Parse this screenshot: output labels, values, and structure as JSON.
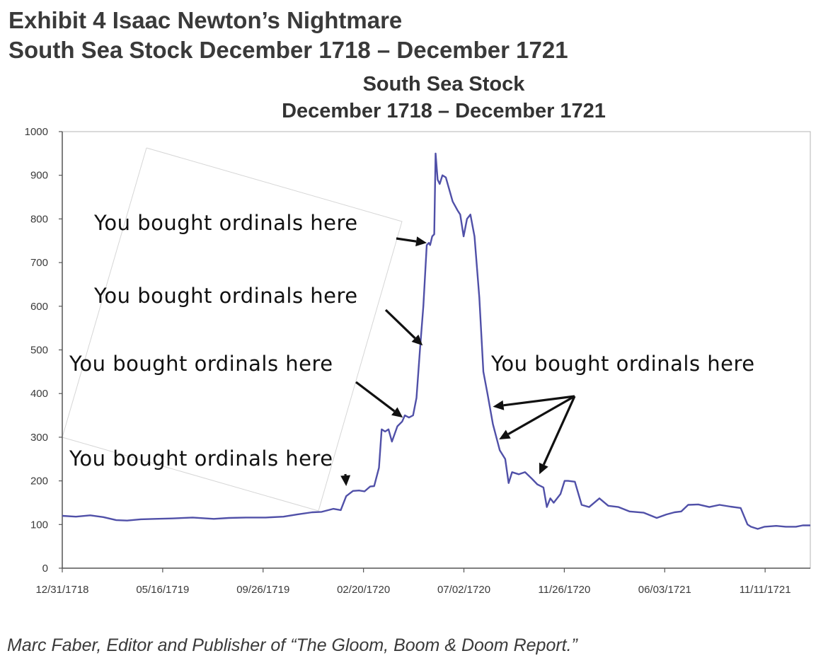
{
  "header": {
    "line1": "Exhibit 4  Isaac Newton’s Nightmare",
    "line2": "South Sea Stock December 1718 – December 1721"
  },
  "source_note": "Marc Faber, Editor and Publisher of “The Gloom, Boom & Doom Report.”",
  "annotation_text": "You bought ordinals here",
  "colors": {
    "line": "#5050a8",
    "arrow": "#111111",
    "axis": "#555555"
  },
  "chart_data": {
    "type": "line",
    "title": "South Sea Stock",
    "subtitle": "December 1718 – December 1721",
    "xlabel": "",
    "ylabel": "",
    "ylim": [
      0,
      1000
    ],
    "xlim": [
      "1718-12-31",
      "1721-12-31"
    ],
    "yticks": [
      0,
      100,
      200,
      300,
      400,
      500,
      600,
      700,
      800,
      900,
      1000
    ],
    "xticks": [
      "12/31/1718",
      "05/16/1719",
      "09/26/1719",
      "02/20/1720",
      "07/02/1720",
      "11/26/1720",
      "06/03/1721",
      "11/11/1721"
    ],
    "grid": false,
    "series": [
      {
        "values": [
          [
            "1718-12-31",
            120
          ],
          [
            "1719-01-20",
            118
          ],
          [
            "1719-02-10",
            121
          ],
          [
            "1719-03-01",
            117
          ],
          [
            "1719-03-20",
            110
          ],
          [
            "1719-04-05",
            109
          ],
          [
            "1719-04-25",
            112
          ],
          [
            "1719-05-16",
            113
          ],
          [
            "1719-06-10",
            114
          ],
          [
            "1719-07-10",
            116
          ],
          [
            "1719-08-10",
            113
          ],
          [
            "1719-09-01",
            115
          ],
          [
            "1719-09-26",
            116
          ],
          [
            "1719-10-25",
            116
          ],
          [
            "1719-11-20",
            118
          ],
          [
            "1719-12-10",
            123
          ],
          [
            "1720-01-01",
            128
          ],
          [
            "1720-01-15",
            129
          ],
          [
            "1720-02-01",
            136
          ],
          [
            "1720-02-12",
            133
          ],
          [
            "1720-02-20",
            165
          ],
          [
            "1720-03-01",
            177
          ],
          [
            "1720-03-10",
            178
          ],
          [
            "1720-03-18",
            176
          ],
          [
            "1720-03-26",
            187
          ],
          [
            "1720-04-01",
            188
          ],
          [
            "1720-04-08",
            230
          ],
          [
            "1720-04-12",
            318
          ],
          [
            "1720-04-17",
            313
          ],
          [
            "1720-04-22",
            318
          ],
          [
            "1720-04-27",
            290
          ],
          [
            "1720-05-05",
            325
          ],
          [
            "1720-05-12",
            336
          ],
          [
            "1720-05-16",
            350
          ],
          [
            "1720-05-22",
            345
          ],
          [
            "1720-05-28",
            350
          ],
          [
            "1720-06-02",
            390
          ],
          [
            "1720-06-07",
            500
          ],
          [
            "1720-06-12",
            600
          ],
          [
            "1720-06-17",
            740
          ],
          [
            "1720-06-20",
            745
          ],
          [
            "1720-06-22",
            740
          ],
          [
            "1720-06-25",
            760
          ],
          [
            "1720-06-28",
            765
          ],
          [
            "1720-06-30",
            950
          ],
          [
            "1720-07-03",
            890
          ],
          [
            "1720-07-06",
            880
          ],
          [
            "1720-07-10",
            900
          ],
          [
            "1720-07-15",
            895
          ],
          [
            "1720-07-25",
            840
          ],
          [
            "1720-08-01",
            820
          ],
          [
            "1720-08-05",
            810
          ],
          [
            "1720-08-10",
            760
          ],
          [
            "1720-08-15",
            800
          ],
          [
            "1720-08-20",
            810
          ],
          [
            "1720-08-26",
            760
          ],
          [
            "1720-09-02",
            620
          ],
          [
            "1720-09-08",
            450
          ],
          [
            "1720-09-14",
            400
          ],
          [
            "1720-09-22",
            330
          ],
          [
            "1720-10-02",
            270
          ],
          [
            "1720-10-10",
            250
          ],
          [
            "1720-10-15",
            195
          ],
          [
            "1720-10-20",
            220
          ],
          [
            "1720-10-30",
            215
          ],
          [
            "1720-11-08",
            220
          ],
          [
            "1720-11-18",
            205
          ],
          [
            "1720-11-26",
            192
          ],
          [
            "1720-12-05",
            185
          ],
          [
            "1720-12-10",
            140
          ],
          [
            "1720-12-15",
            160
          ],
          [
            "1720-12-20",
            150
          ],
          [
            "1720-12-30",
            170
          ],
          [
            "1721-01-05",
            200
          ],
          [
            "1721-01-10",
            200
          ],
          [
            "1721-01-20",
            198
          ],
          [
            "1721-01-30",
            145
          ],
          [
            "1721-02-10",
            140
          ],
          [
            "1721-02-25",
            160
          ],
          [
            "1721-03-10",
            143
          ],
          [
            "1721-03-25",
            140
          ],
          [
            "1721-04-10",
            130
          ],
          [
            "1721-05-01",
            127
          ],
          [
            "1721-05-20",
            115
          ],
          [
            "1721-06-03",
            123
          ],
          [
            "1721-06-15",
            128
          ],
          [
            "1721-06-25",
            130
          ],
          [
            "1721-07-05",
            145
          ],
          [
            "1721-07-20",
            146
          ],
          [
            "1721-08-05",
            140
          ],
          [
            "1721-08-20",
            145
          ],
          [
            "1721-09-05",
            141
          ],
          [
            "1721-09-20",
            138
          ],
          [
            "1721-09-30",
            100
          ],
          [
            "1721-10-05",
            95
          ],
          [
            "1721-10-15",
            90
          ],
          [
            "1721-10-25",
            95
          ],
          [
            "1721-11-11",
            97
          ],
          [
            "1721-11-25",
            95
          ],
          [
            "1721-12-10",
            95
          ],
          [
            "1721-12-20",
            98
          ],
          [
            "1721-12-31",
            98
          ]
        ]
      }
    ],
    "annotations": [
      {
        "text": "You bought ordinals here",
        "arrow_targets": [
          [
            "1720-06-17",
            745
          ]
        ]
      },
      {
        "text": "You bought ordinals here",
        "arrow_targets": [
          [
            "1720-06-11",
            510
          ]
        ]
      },
      {
        "text": "You bought ordinals here",
        "arrow_targets": [
          [
            "1720-05-13",
            345
          ]
        ]
      },
      {
        "text": "You bought ordinals here",
        "arrow_targets": [
          [
            "1720-02-20",
            188
          ]
        ]
      },
      {
        "text": "You bought ordinals here",
        "arrow_targets": [
          [
            "1720-09-22",
            370
          ],
          [
            "1720-10-01",
            295
          ],
          [
            "1720-11-29",
            215
          ]
        ]
      }
    ]
  }
}
